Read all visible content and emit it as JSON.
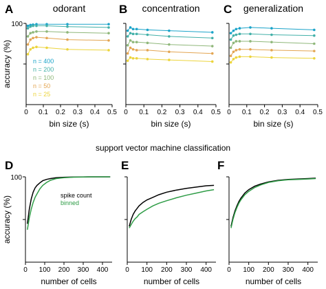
{
  "section_title": "support vector machine classification",
  "colors": {
    "n400": "#1aa3c9",
    "n200": "#42b0a8",
    "n100": "#8fb77a",
    "n50": "#e3a552",
    "n25": "#ecd43c",
    "spike_count": "#000000",
    "binned": "#2e9c46"
  },
  "chart_data": [
    {
      "type": "line",
      "panel": "A",
      "title": "odorant",
      "xlabel": "bin size (s)",
      "ylabel": "accuracy (%)",
      "xlim": [
        0,
        0.5
      ],
      "ylim": [
        0,
        100
      ],
      "xticks": [
        "0",
        "0.1",
        "0.2",
        "0.3",
        "0.4",
        "0.5"
      ],
      "yticks": [
        "100"
      ],
      "x": [
        0.01,
        0.025,
        0.04,
        0.06,
        0.12,
        0.24,
        0.48
      ],
      "legend": [
        "n = 400",
        "n = 200",
        "n = 100",
        "n =  50",
        "n =  25"
      ],
      "series": [
        {
          "name": "n = 400",
          "color_key": "n400",
          "values": [
            97,
            98,
            98.5,
            99,
            99,
            99,
            99
          ]
        },
        {
          "name": "n = 200",
          "color_key": "n200",
          "values": [
            94,
            96,
            97,
            97,
            97,
            96,
            95
          ]
        },
        {
          "name": "n = 100",
          "color_key": "n100",
          "values": [
            84,
            88,
            89,
            90,
            90,
            89,
            88
          ]
        },
        {
          "name": "n =  50",
          "color_key": "n50",
          "values": [
            74,
            80,
            82,
            83,
            82,
            80,
            79
          ]
        },
        {
          "name": "n =  25",
          "color_key": "n25",
          "values": [
            62,
            68,
            70,
            71,
            70,
            68,
            67
          ]
        }
      ]
    },
    {
      "type": "line",
      "panel": "B",
      "title": "concentration",
      "xlabel": "bin size (s)",
      "ylabel": "",
      "xlim": [
        0,
        0.5
      ],
      "ylim": [
        0,
        100
      ],
      "xticks": [
        "0",
        "0.1",
        "0.2",
        "0.3",
        "0.4",
        "0.5"
      ],
      "x": [
        0.01,
        0.025,
        0.04,
        0.06,
        0.12,
        0.24,
        0.48
      ],
      "series": [
        {
          "color_key": "n400",
          "values": [
            91,
            95,
            93,
            93,
            92,
            91,
            89
          ]
        },
        {
          "color_key": "n200",
          "values": [
            84,
            88,
            87,
            87,
            86,
            84,
            82
          ]
        },
        {
          "color_key": "n100",
          "values": [
            73,
            79,
            77,
            77,
            76,
            74,
            72
          ]
        },
        {
          "color_key": "n50",
          "values": [
            63,
            70,
            68,
            67,
            67,
            65,
            63
          ]
        },
        {
          "color_key": "n25",
          "values": [
            54,
            58,
            57,
            57,
            56,
            55,
            53
          ]
        }
      ]
    },
    {
      "type": "line",
      "panel": "C",
      "title": "generalization",
      "xlabel": "bin size (s)",
      "ylabel": "",
      "xlim": [
        0,
        0.5
      ],
      "ylim": [
        0,
        100
      ],
      "xticks": [
        "0",
        "0.1",
        "0.2",
        "0.3",
        "0.4",
        "0.5"
      ],
      "x": [
        0.01,
        0.025,
        0.04,
        0.06,
        0.12,
        0.24,
        0.48
      ],
      "series": [
        {
          "color_key": "n400",
          "values": [
            88,
            91,
            93,
            94,
            95,
            94,
            92
          ]
        },
        {
          "color_key": "n200",
          "values": [
            80,
            85,
            86,
            87,
            87,
            86,
            85
          ]
        },
        {
          "color_key": "n100",
          "values": [
            70,
            76,
            78,
            78,
            78,
            77,
            75
          ]
        },
        {
          "color_key": "n50",
          "values": [
            60,
            65,
            67,
            68,
            68,
            67,
            66
          ]
        },
        {
          "color_key": "n25",
          "values": [
            52,
            56,
            58,
            59,
            59,
            58,
            57
          ]
        }
      ]
    },
    {
      "type": "line",
      "panel": "D",
      "xlabel": "number of cells",
      "ylabel": "accuracy (%)",
      "xlim": [
        0,
        450
      ],
      "ylim": [
        0,
        100
      ],
      "xticks": [
        "0",
        "100",
        "200",
        "300",
        "400"
      ],
      "yticks": [
        "100"
      ],
      "legend": [
        "spike count",
        "binned"
      ],
      "series": [
        {
          "name": "spike count",
          "color_key": "spike_count",
          "x": [
            10,
            20,
            30,
            40,
            50,
            60,
            75,
            90,
            110,
            130,
            160,
            200,
            250,
            300,
            350,
            400,
            440
          ],
          "values": [
            45,
            62,
            74,
            82,
            87,
            90,
            93,
            95.5,
            97,
            98,
            99,
            99.5,
            99.8,
            99.9,
            100,
            100,
            100
          ]
        },
        {
          "name": "binned",
          "color_key": "binned",
          "x": [
            10,
            20,
            30,
            40,
            50,
            60,
            75,
            90,
            110,
            130,
            160,
            200,
            250,
            300,
            350,
            400,
            440
          ],
          "values": [
            38,
            52,
            62,
            70,
            76,
            80,
            86,
            90,
            93.5,
            96,
            98,
            99,
            99.6,
            99.8,
            100,
            100,
            100
          ]
        }
      ]
    },
    {
      "type": "line",
      "panel": "E",
      "xlabel": "number of cells",
      "ylabel": "",
      "xlim": [
        0,
        450
      ],
      "ylim": [
        0,
        100
      ],
      "xticks": [
        "0",
        "100",
        "200",
        "300",
        "400"
      ],
      "series": [
        {
          "name": "spike count",
          "color_key": "spike_count",
          "x": [
            10,
            20,
            30,
            40,
            50,
            60,
            80,
            100,
            130,
            160,
            200,
            250,
            300,
            350,
            400,
            440
          ],
          "values": [
            42,
            50,
            56,
            60,
            63,
            66,
            70,
            73,
            76,
            79,
            82,
            84.5,
            86.5,
            88,
            89.5,
            90
          ]
        },
        {
          "name": "binned",
          "color_key": "binned",
          "x": [
            10,
            20,
            30,
            40,
            50,
            60,
            80,
            100,
            130,
            160,
            200,
            250,
            300,
            350,
            400,
            440
          ],
          "values": [
            40,
            44,
            48,
            51,
            53,
            56,
            59,
            62,
            66,
            69,
            72,
            75.5,
            78.5,
            81,
            83.5,
            85
          ]
        }
      ]
    },
    {
      "type": "line",
      "panel": "F",
      "xlabel": "number of cells",
      "ylabel": "",
      "xlim": [
        0,
        450
      ],
      "ylim": [
        0,
        100
      ],
      "xticks": [
        "0",
        "100",
        "200",
        "300",
        "400"
      ],
      "series": [
        {
          "name": "spike count",
          "color_key": "spike_count",
          "x": [
            10,
            20,
            30,
            40,
            50,
            60,
            80,
            100,
            130,
            160,
            200,
            250,
            300,
            350,
            400,
            440
          ],
          "values": [
            42,
            52,
            60,
            66,
            71,
            75,
            81,
            85,
            89,
            91.5,
            94,
            96,
            97,
            97.5,
            98,
            98.5
          ]
        },
        {
          "name": "binned",
          "color_key": "binned",
          "x": [
            10,
            20,
            30,
            40,
            50,
            60,
            80,
            100,
            130,
            160,
            200,
            250,
            300,
            350,
            400,
            440
          ],
          "values": [
            40,
            50,
            58,
            64,
            69,
            73,
            79,
            83,
            87.5,
            90.5,
            93.5,
            95.5,
            96.5,
            97,
            97.5,
            98
          ]
        }
      ]
    }
  ]
}
